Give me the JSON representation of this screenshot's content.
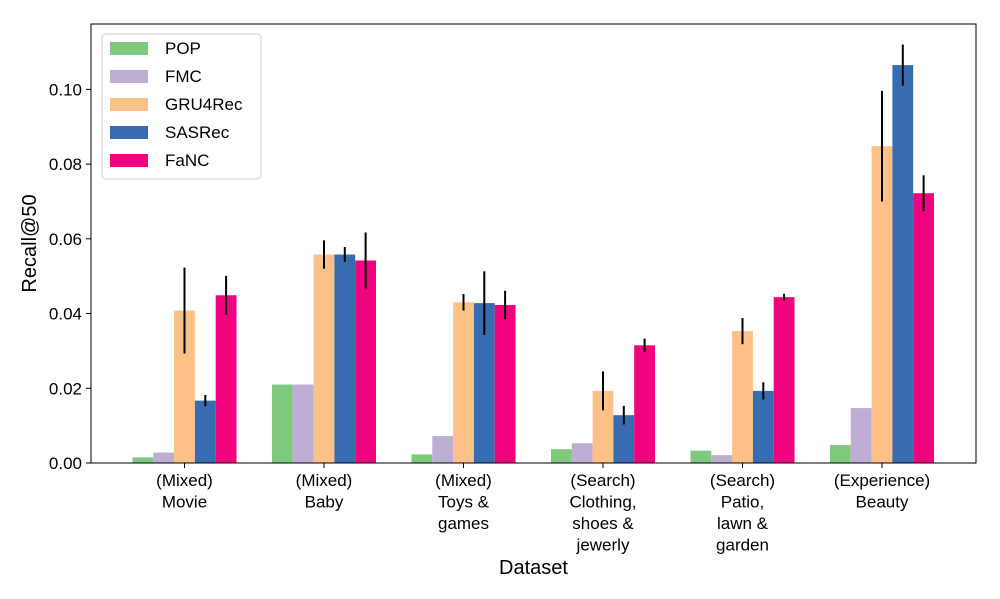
{
  "chart_data": {
    "type": "bar",
    "xlabel": "Dataset",
    "ylabel": "Recall@50",
    "ylim": [
      0,
      0.1175
    ],
    "yticks": [
      "0.00",
      "0.02",
      "0.04",
      "0.06",
      "0.08",
      "0.10"
    ],
    "ytick_values": [
      0,
      0.02,
      0.04,
      0.06,
      0.08,
      0.1
    ],
    "grid": false,
    "legend_position": "top-left",
    "categories": [
      [
        "(Mixed)",
        "Movie"
      ],
      [
        "(Mixed)",
        "Baby"
      ],
      [
        "(Mixed)",
        "Toys &",
        "games"
      ],
      [
        "(Search)",
        "Clothing,",
        "shoes &",
        "jewerly"
      ],
      [
        "(Search)",
        "Patio,",
        "lawn &",
        "garden"
      ],
      [
        "(Experience)",
        "Beauty"
      ]
    ],
    "series": [
      {
        "name": "POP",
        "color": "#7fc97f",
        "values": [
          0.0015,
          0.021,
          0.0023,
          0.0037,
          0.0033,
          0.0048
        ],
        "errors": [
          0,
          0,
          0,
          0,
          0,
          0
        ]
      },
      {
        "name": "FMC",
        "color": "#beaed4",
        "values": [
          0.0028,
          0.021,
          0.0072,
          0.0053,
          0.0021,
          0.0147
        ],
        "errors": [
          0,
          0,
          0,
          0,
          0,
          0
        ]
      },
      {
        "name": "GRU4Rec",
        "color": "#fdc086",
        "values": [
          0.0408,
          0.0558,
          0.043,
          0.0193,
          0.0353,
          0.0848
        ],
        "errors": [
          0.0115,
          0.0038,
          0.0022,
          0.0052,
          0.0035,
          0.0148
        ]
      },
      {
        "name": "SASRec",
        "color": "#386cb0",
        "values": [
          0.0167,
          0.0558,
          0.0428,
          0.0128,
          0.0193,
          0.1065
        ],
        "errors": [
          0.0015,
          0.002,
          0.0085,
          0.0025,
          0.0023,
          0.0055
        ]
      },
      {
        "name": "FaNC",
        "color": "#f0027f",
        "values": [
          0.0449,
          0.0542,
          0.0423,
          0.0315,
          0.0444,
          0.0722
        ],
        "errors": [
          0.0052,
          0.0075,
          0.0038,
          0.0018,
          0.0009,
          0.0048
        ]
      }
    ]
  }
}
